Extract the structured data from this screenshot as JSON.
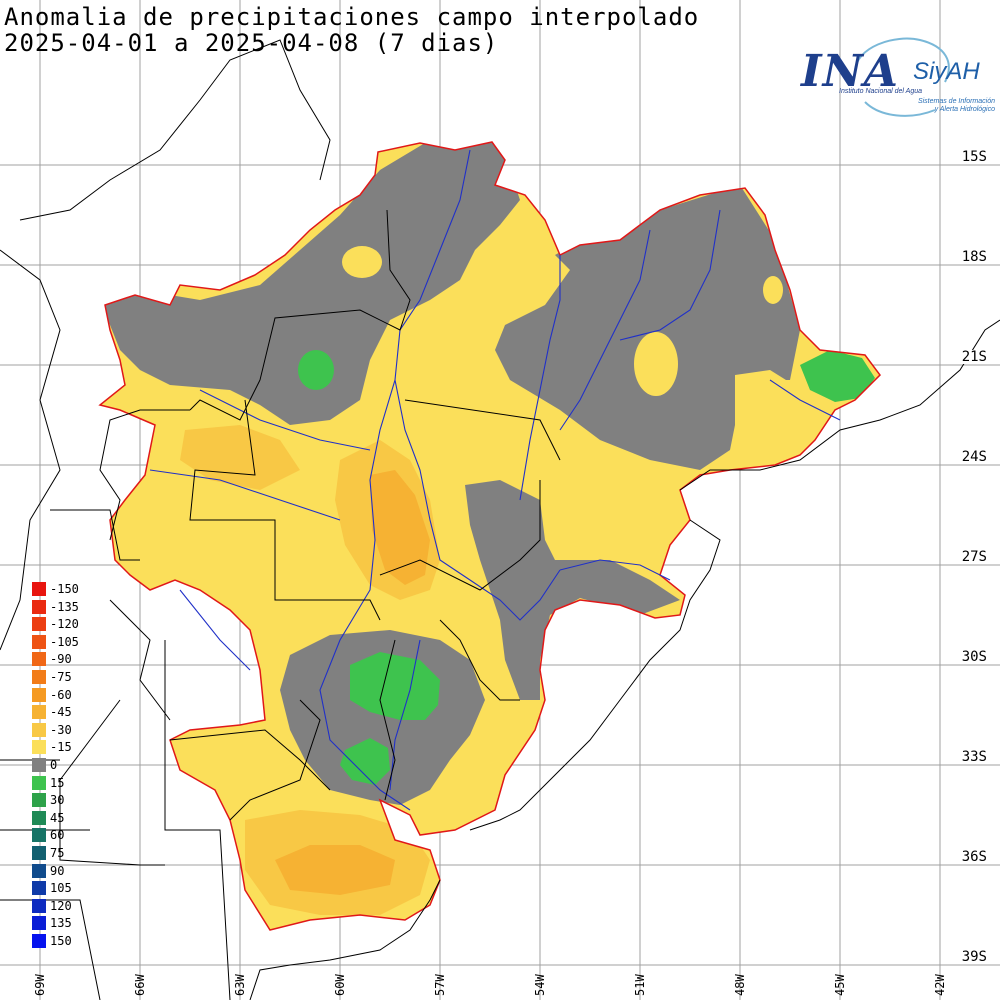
{
  "header": {
    "title_line1": "Anomalia de precipitaciones campo interpolado",
    "title_line2": "2025-04-01 a 2025-04-08 (7 dias)"
  },
  "logo": {
    "main": "INA",
    "brand": "SiyAH",
    "subtitle1": "Instituto Nacional del Agua",
    "subtitle2": "Sistemas de Información y Alerta Hidrológico"
  },
  "latitude_labels": [
    "15S",
    "18S",
    "21S",
    "24S",
    "27S",
    "30S",
    "33S",
    "36S",
    "39S"
  ],
  "longitude_labels": [
    "69W",
    "66W",
    "63W",
    "60W",
    "57W",
    "54W",
    "51W",
    "48W",
    "45W",
    "42W"
  ],
  "legend": [
    {
      "label": "-150",
      "color": "#e8150f"
    },
    {
      "label": "-135",
      "color": "#ea2a10"
    },
    {
      "label": "-120",
      "color": "#ec3e12"
    },
    {
      "label": "-105",
      "color": "#ee5314"
    },
    {
      "label": "-90",
      "color": "#f06716"
    },
    {
      "label": "-75",
      "color": "#f27c18"
    },
    {
      "label": "-60",
      "color": "#f59a22"
    },
    {
      "label": "-45",
      "color": "#f6b233"
    },
    {
      "label": "-30",
      "color": "#f8c845"
    },
    {
      "label": "-15",
      "color": "#fbdf5a"
    },
    {
      "label": "0",
      "color": "#808080"
    },
    {
      "label": "15",
      "color": "#3ec34e"
    },
    {
      "label": "30",
      "color": "#2ea24a"
    },
    {
      "label": "45",
      "color": "#1f8a56"
    },
    {
      "label": "60",
      "color": "#177466"
    },
    {
      "label": "75",
      "color": "#126070"
    },
    {
      "label": "90",
      "color": "#104b8c"
    },
    {
      "label": "105",
      "color": "#0f3aa8"
    },
    {
      "label": "120",
      "color": "#0d2bc0"
    },
    {
      "label": "135",
      "color": "#0a1ed6"
    },
    {
      "label": "150",
      "color": "#0512ee"
    }
  ],
  "colors": {
    "basin_outline": "#e01818",
    "country_border": "#000000",
    "province_border": "#000000",
    "rivers": "#2030c8",
    "gridlines": "#a0a0a0"
  }
}
